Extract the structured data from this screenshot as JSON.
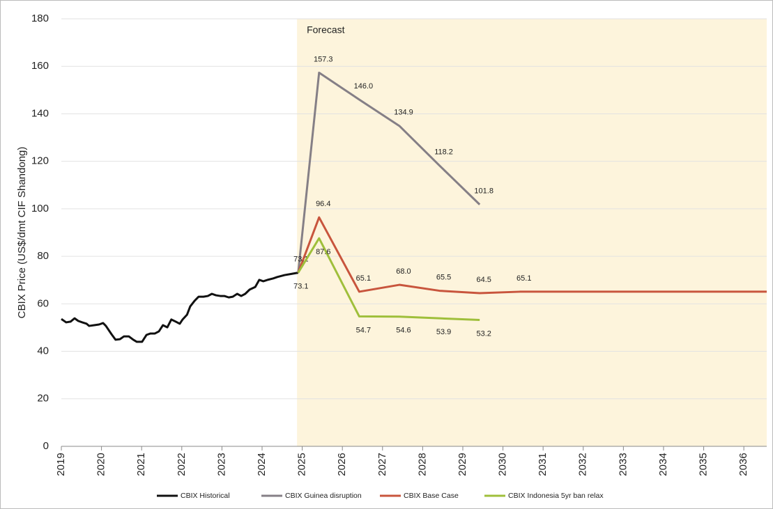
{
  "chart_data": {
    "type": "line",
    "y_label": "CBIX Price (US$/dmt CIF Shandong)",
    "annotation": "Forecast",
    "forecast_start": 2024.87,
    "xlim": [
      2019,
      2036.57
    ],
    "xticks": [
      2019,
      2020,
      2021,
      2022,
      2023,
      2024,
      2025,
      2026,
      2027,
      2028,
      2029,
      2030,
      2031,
      2032,
      2033,
      2034,
      2035,
      2036
    ],
    "ylim": [
      0,
      180
    ],
    "yticks": [
      0,
      20,
      40,
      60,
      80,
      100,
      120,
      140,
      160,
      180
    ],
    "grid": true,
    "legend": "bottom",
    "series": [
      {
        "name": "CBIX Historical",
        "color": "#111111",
        "x": [
          2019.0,
          2019.12,
          2019.23,
          2019.33,
          2019.42,
          2019.52,
          2019.63,
          2019.69,
          2019.82,
          2019.94,
          2020.04,
          2020.11,
          2020.25,
          2020.35,
          2020.46,
          2020.56,
          2020.68,
          2020.79,
          2020.88,
          2021.01,
          2021.12,
          2021.22,
          2021.33,
          2021.43,
          2021.53,
          2021.64,
          2021.74,
          2021.85,
          2021.95,
          2022.02,
          2022.13,
          2022.21,
          2022.32,
          2022.42,
          2022.54,
          2022.65,
          2022.75,
          2022.85,
          2022.96,
          2023.06,
          2023.17,
          2023.27,
          2023.38,
          2023.48,
          2023.58,
          2023.69,
          2023.83,
          2023.93,
          2024.03,
          2024.14,
          2024.28,
          2024.38,
          2024.56,
          2024.73,
          2024.9
        ],
        "values": [
          53.6,
          52.2,
          52.5,
          53.9,
          52.8,
          52.2,
          51.6,
          50.7,
          51.0,
          51.3,
          51.9,
          50.7,
          47.2,
          44.9,
          45.1,
          46.3,
          46.3,
          44.9,
          44.0,
          44.0,
          46.9,
          47.5,
          47.5,
          48.4,
          51.0,
          50.1,
          53.4,
          52.5,
          51.6,
          53.4,
          55.4,
          58.9,
          61.3,
          63.0,
          63.0,
          63.3,
          64.2,
          63.6,
          63.3,
          63.3,
          62.7,
          63.0,
          64.2,
          63.3,
          64.2,
          66.0,
          67.1,
          70.1,
          69.5,
          70.1,
          70.7,
          71.3,
          72.1,
          72.6,
          73.1
        ]
      },
      {
        "name": "CBIX Guinea disruption",
        "color": "#857f86",
        "label_position": "above",
        "x": [
          2024.9,
          2025.42,
          2026.42,
          2027.42,
          2028.42,
          2029.42
        ],
        "values": [
          73.1,
          157.3,
          146.0,
          134.9,
          118.2,
          101.8
        ],
        "value_labels": [
          null,
          "157.3",
          "146.0",
          "134.9",
          "118.2",
          "101.8"
        ]
      },
      {
        "name": "CBIX Base Case",
        "color": "#c8553d",
        "label_position": "above",
        "x": [
          2024.9,
          2025.42,
          2026.42,
          2027.42,
          2028.42,
          2029.42,
          2030.42,
          2036.57
        ],
        "values": [
          73.1,
          96.4,
          65.1,
          68.0,
          65.5,
          64.5,
          65.1,
          65.1
        ],
        "value_labels": [
          "73.1",
          "96.4",
          "65.1",
          "68.0",
          "65.5",
          "64.5",
          "65.1",
          null
        ]
      },
      {
        "name": "CBIX Indonesia 5yr ban relax",
        "color": "#9fbf3b",
        "label_position": "below",
        "x": [
          2024.9,
          2025.42,
          2026.42,
          2027.42,
          2028.42,
          2029.42
        ],
        "values": [
          73.1,
          87.6,
          54.7,
          54.6,
          53.9,
          53.2
        ],
        "value_labels": [
          "73.1",
          "87.6",
          "54.7",
          "54.6",
          "53.9",
          "53.2"
        ]
      }
    ]
  }
}
